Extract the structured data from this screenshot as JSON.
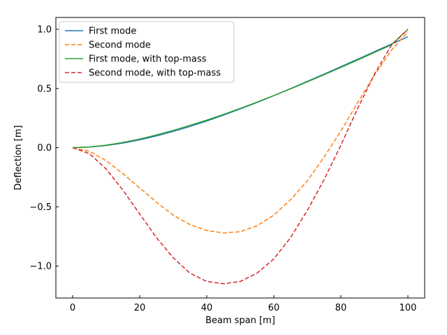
{
  "chart_data": {
    "type": "line",
    "xlabel": "Beam span [m]",
    "ylabel": "Deflection [m]",
    "xlim": [
      -5,
      105
    ],
    "ylim": [
      -1.27,
      1.1
    ],
    "xticks": [
      0,
      20,
      40,
      60,
      80,
      100
    ],
    "xtick_labels": [
      "0",
      "20",
      "40",
      "60",
      "80",
      "100"
    ],
    "yticks": [
      1.0,
      0.5,
      0.0,
      -0.5,
      -1.0
    ],
    "ytick_labels": [
      "1.0",
      "0.5",
      "0.0",
      "−0.5",
      "−1.0"
    ],
    "grid": false,
    "legend_position": "top-left",
    "x": [
      0,
      5,
      10,
      15,
      20,
      25,
      30,
      35,
      40,
      45,
      50,
      55,
      60,
      65,
      70,
      75,
      80,
      85,
      90,
      95,
      100
    ],
    "series": [
      {
        "name": "First mode",
        "color": "#1f77b4",
        "dash": "solid",
        "values": [
          0.0,
          0.005,
          0.018,
          0.039,
          0.066,
          0.099,
          0.137,
          0.179,
          0.225,
          0.275,
          0.327,
          0.382,
          0.439,
          0.499,
          0.56,
          0.621,
          0.684,
          0.747,
          0.811,
          0.874,
          0.937
        ]
      },
      {
        "name": "Second mode",
        "color": "#ff7f0e",
        "dash": "dashed",
        "values": [
          0.0,
          -0.03,
          -0.11,
          -0.22,
          -0.34,
          -0.46,
          -0.57,
          -0.65,
          -0.7,
          -0.72,
          -0.71,
          -0.66,
          -0.57,
          -0.44,
          -0.28,
          -0.08,
          0.14,
          0.38,
          0.61,
          0.82,
          0.98
        ]
      },
      {
        "name": "First mode, with top-mass",
        "color": "#2ca02c",
        "dash": "solid",
        "values": [
          0.0,
          0.006,
          0.021,
          0.044,
          0.073,
          0.107,
          0.146,
          0.188,
          0.233,
          0.281,
          0.332,
          0.385,
          0.44,
          0.497,
          0.556,
          0.616,
          0.678,
          0.74,
          0.804,
          0.868,
          1.0
        ]
      },
      {
        "name": "Second mode, with top-mass",
        "color": "#d62728",
        "dash": "dashed",
        "values": [
          0.0,
          -0.05,
          -0.18,
          -0.36,
          -0.56,
          -0.76,
          -0.93,
          -1.06,
          -1.13,
          -1.15,
          -1.13,
          -1.06,
          -0.94,
          -0.76,
          -0.53,
          -0.27,
          0.02,
          0.33,
          0.62,
          0.86,
          1.0
        ]
      }
    ]
  }
}
